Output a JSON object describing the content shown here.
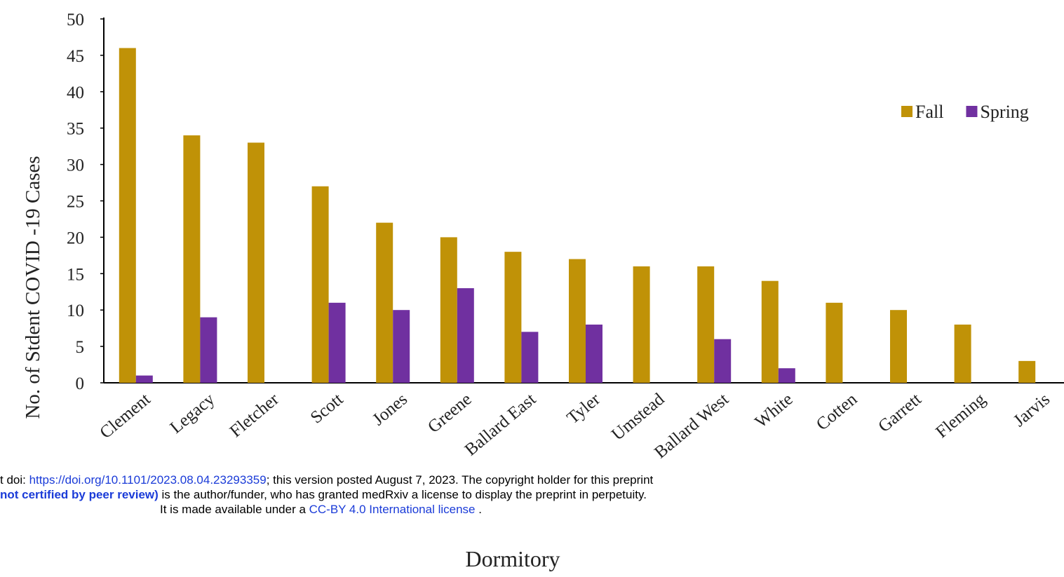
{
  "chart_data": {
    "type": "bar",
    "y_label": "No. of Stdent COVID -19 Cases",
    "x_label": "Dormitory",
    "categories": [
      "Clement",
      "Legacy",
      "Fletcher",
      "Scott",
      "Jones",
      "Greene",
      "Ballard East",
      "Tyler",
      "Umstead",
      "Ballard West",
      "White",
      "Cotten",
      "Garrett",
      "Fleming",
      "Jarvis"
    ],
    "series": [
      {
        "name": "Fall",
        "color": "#c09207",
        "values": [
          46,
          34,
          33,
          27,
          22,
          20,
          18,
          17,
          16,
          16,
          14,
          11,
          10,
          8,
          3
        ]
      },
      {
        "name": "Spring",
        "color": "#7030a0",
        "values": [
          1,
          9,
          0,
          11,
          10,
          13,
          7,
          8,
          0,
          6,
          2,
          0,
          0,
          0,
          0
        ]
      }
    ],
    "ylim": [
      0,
      50
    ],
    "yticks": [
      0,
      5,
      10,
      15,
      20,
      25,
      30,
      35,
      40,
      45,
      50
    ],
    "grid": false,
    "legend": "upper right"
  },
  "overlay": {
    "line1": [
      "t doi: ",
      "https://doi.org/10.1101/2023.08.04.23293359",
      "; this version posted August 7, 2023. The copyright holder for this preprint"
    ],
    "line2": [
      "not certified by peer review)",
      " is the author/funder, who has granted medRxiv a license to display the preprint in perpetuity."
    ],
    "line3": [
      "It is made available under a ",
      "CC-BY 4.0 International license",
      " ."
    ]
  }
}
